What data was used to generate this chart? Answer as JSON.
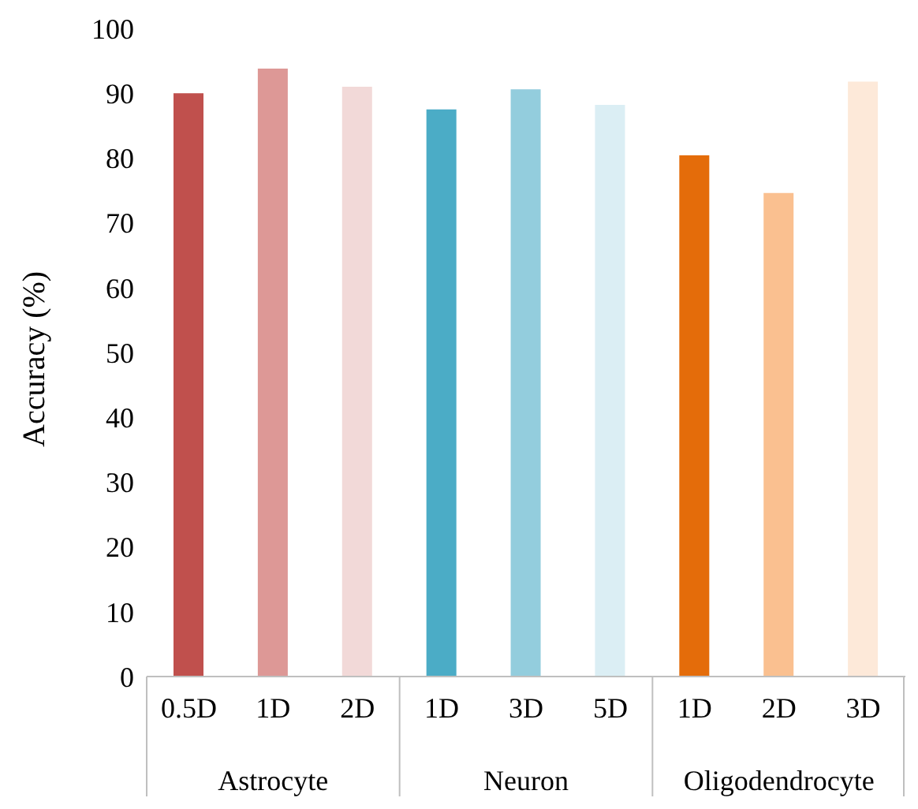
{
  "chart_data": {
    "type": "bar",
    "ylabel": "Accuracy (%)",
    "categories": [
      "0.5D",
      "1D",
      "2D",
      "1D",
      "3D",
      "5D",
      "1D",
      "2D",
      "3D"
    ],
    "values": [
      90,
      93.8,
      91,
      87.5,
      90.6,
      88.2,
      80.4,
      74.6,
      91.8
    ],
    "colors": [
      "#c0504d",
      "#dd9896",
      "#f2d9d8",
      "#4bacc6",
      "#93cddd",
      "#dbeef4",
      "#e46c0a",
      "#fac090",
      "#fde9d9"
    ],
    "ylim": [
      0,
      100
    ],
    "yticks": [
      0,
      10,
      20,
      30,
      40,
      50,
      60,
      70,
      80,
      90,
      100
    ],
    "grid": false,
    "legend": false,
    "annotations": [
      "Astrocyte",
      "Neuron",
      "Oligodendrocyte"
    ]
  }
}
